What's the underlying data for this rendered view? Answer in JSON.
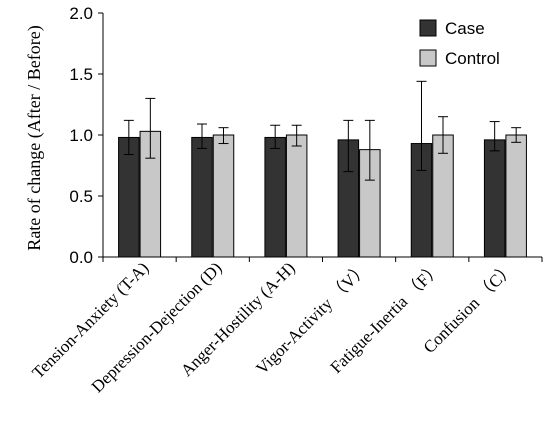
{
  "chart_data": {
    "type": "bar",
    "title": "",
    "xlabel": "",
    "ylabel": "Rate of change (After / Before)",
    "ylim": [
      0,
      2.0
    ],
    "yticks": [
      "0.0",
      "0.5",
      "1.0",
      "1.5",
      "2.0"
    ],
    "grid": false,
    "legend_position": "top-right",
    "categories": [
      "Tension-Anxiety (T-A)",
      "Depression-Dejection (D)",
      "Anger-Hostility (A-H)",
      "Vigor-Activity （V）",
      "Fatigue-Inertia （F）",
      "Confusion （C）"
    ],
    "series": [
      {
        "name": "Case",
        "color": "#333333",
        "values": [
          0.98,
          0.98,
          0.98,
          0.96,
          0.93,
          0.96
        ],
        "error_high": [
          1.12,
          1.09,
          1.08,
          1.12,
          1.44,
          1.11
        ],
        "error_low": [
          0.84,
          0.89,
          0.89,
          0.7,
          0.71,
          0.87
        ]
      },
      {
        "name": "Control",
        "color": "#c8c8c8",
        "values": [
          1.03,
          1.0,
          1.0,
          0.88,
          1.0,
          1.0
        ],
        "error_high": [
          1.3,
          1.06,
          1.08,
          1.12,
          1.15,
          1.06
        ],
        "error_low": [
          0.81,
          0.93,
          0.91,
          0.63,
          0.85,
          0.94
        ]
      }
    ]
  }
}
